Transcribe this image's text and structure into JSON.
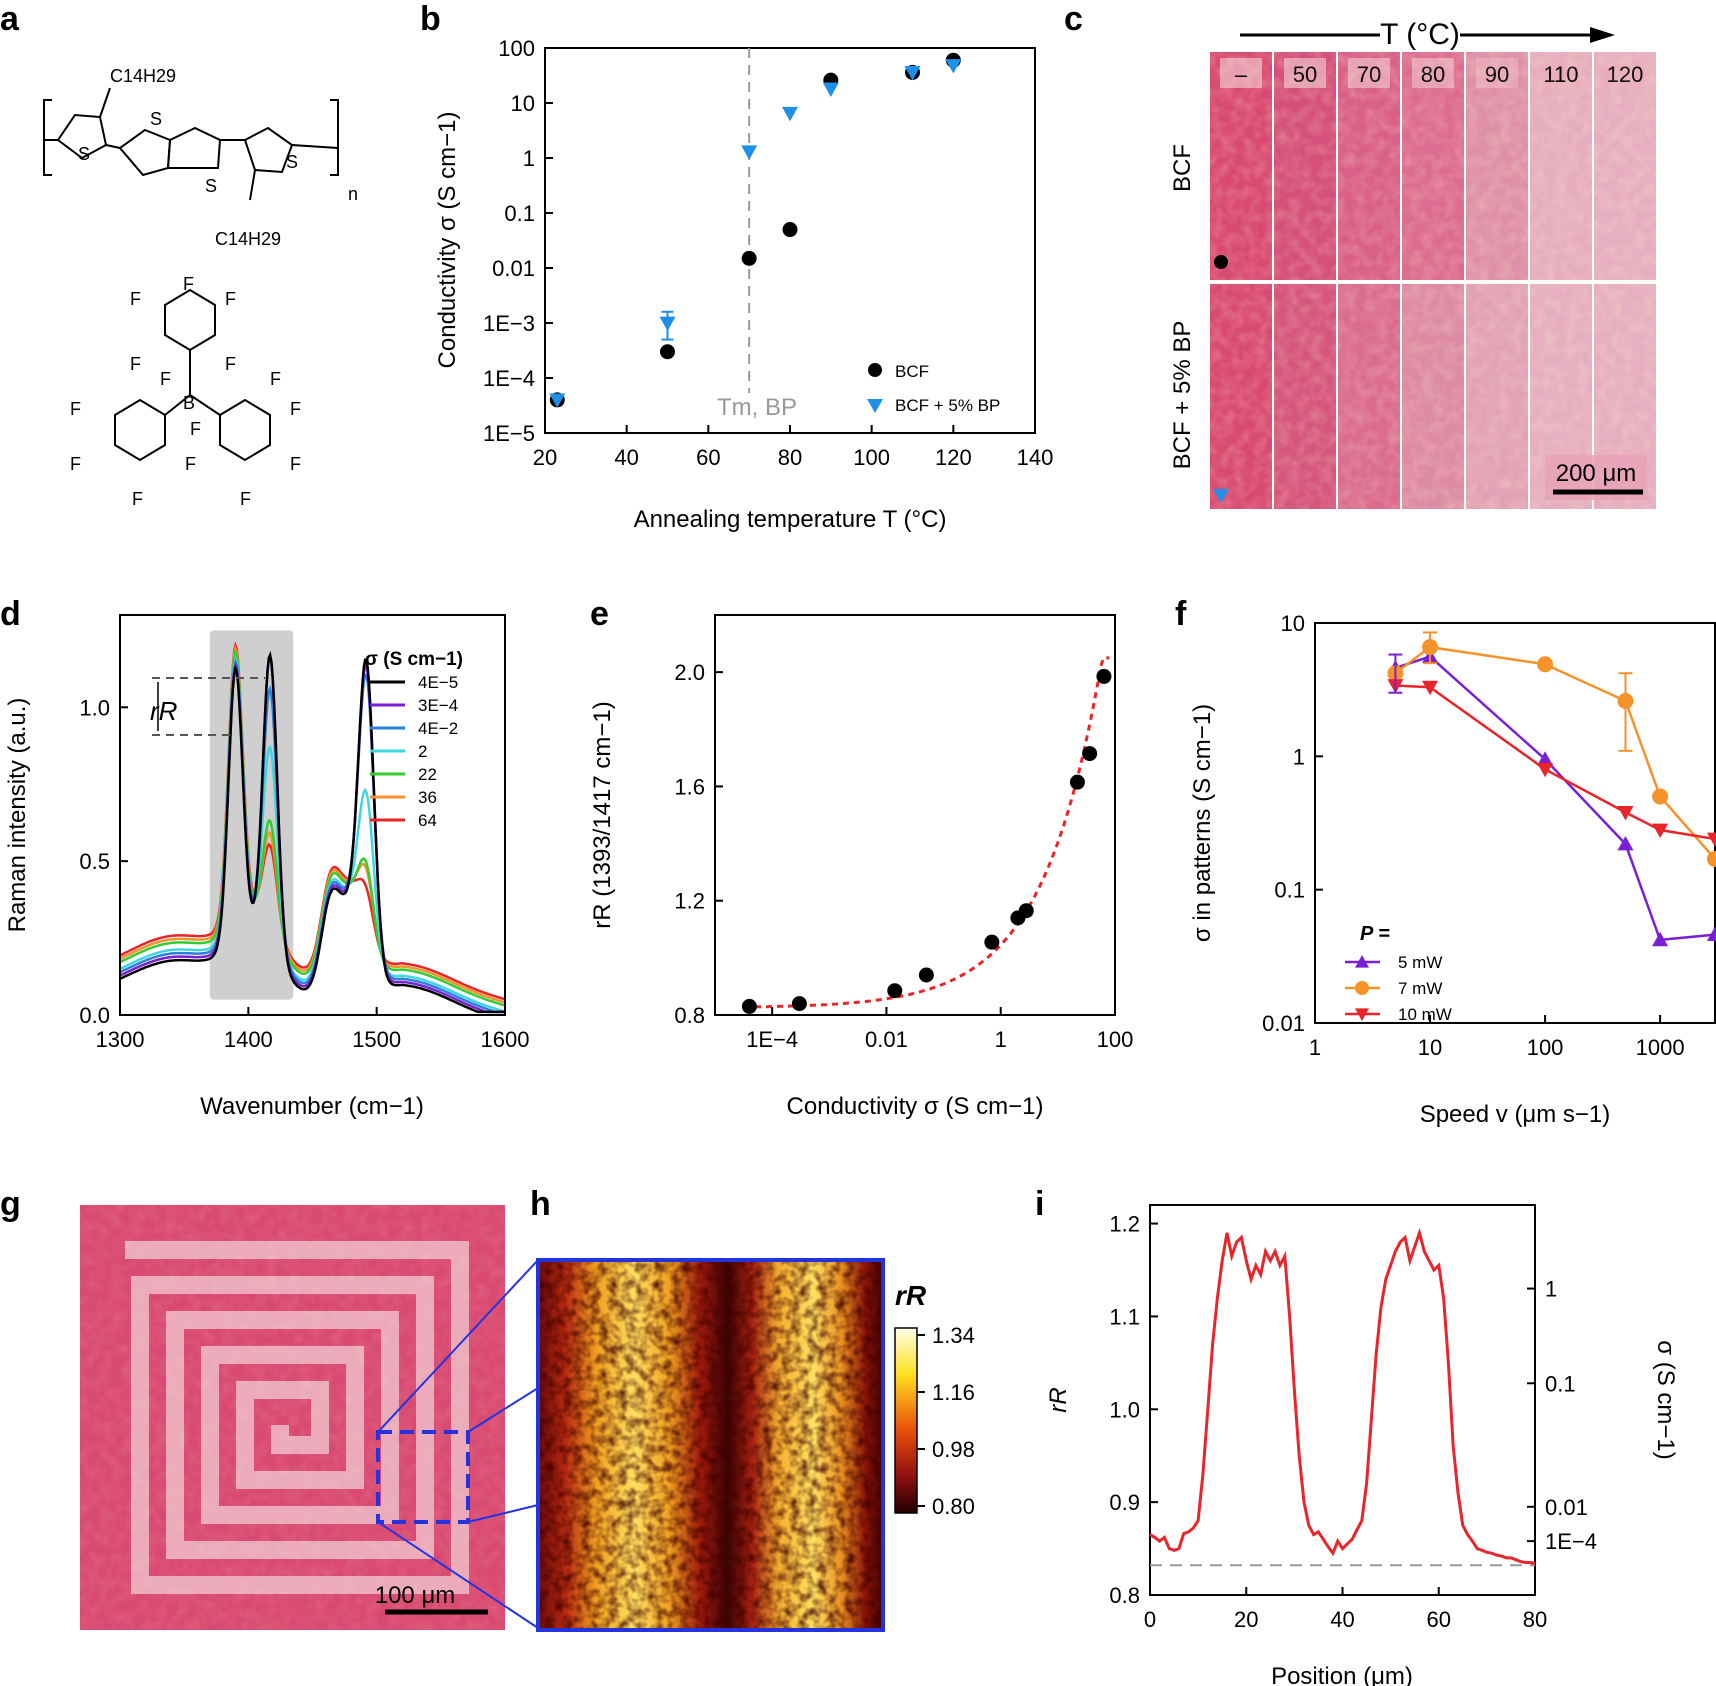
{
  "panels": {
    "a": "a",
    "b": "b",
    "c": "c",
    "d": "d",
    "e": "e",
    "f": "f",
    "g": "g",
    "h": "h",
    "i": "i"
  },
  "colors": {
    "bcf": "#000000",
    "bcf_bp": "#1f8fe8",
    "p5": "#7a1fd6",
    "p7": "#f5922a",
    "p10": "#e8252a",
    "film_pink": "#d94a72",
    "film_light": "#e9aabb"
  },
  "a": {
    "c14_top": "C14H29",
    "c14_bottom": "C14H29",
    "repeat_n": "n",
    "atoms": {
      "S": "S",
      "F": "F",
      "B": "B"
    }
  },
  "b": {
    "chart_data": {
      "type": "scatter",
      "xlabel": "Annealing temperature T (°C)",
      "ylabel": "Conductivity σ (S cm−1)",
      "xlim": [
        20,
        140
      ],
      "ylim": [
        1e-05,
        100
      ],
      "yscale": "log",
      "xticks": [
        20,
        40,
        60,
        80,
        100,
        120,
        140
      ],
      "yticklabels": [
        "1E−5",
        "1E−4",
        "1E−3",
        "0.01",
        "0.1",
        "1",
        "10",
        "100"
      ],
      "annotation": "Tm, BP",
      "annotation_x": 70,
      "series": [
        {
          "name": "BCF",
          "marker": "circle",
          "x": [
            23,
            50,
            70,
            80,
            90,
            110,
            120
          ],
          "y": [
            4e-05,
            0.0003,
            0.015,
            0.05,
            26,
            36,
            60
          ]
        },
        {
          "name": "BCF + 5% BP",
          "marker": "triangle-down",
          "x": [
            23,
            50,
            70,
            80,
            90,
            110,
            120
          ],
          "y": [
            4e-05,
            0.001,
            1.3,
            6.5,
            18,
            36,
            48
          ]
        }
      ]
    }
  },
  "c": {
    "axis_label": "T (°C)",
    "strips": [
      "–",
      "50",
      "70",
      "80",
      "90",
      "110",
      "120"
    ],
    "rows": [
      "BCF",
      "BCF + 5% BP"
    ],
    "scale_bar": "200 μm"
  },
  "d": {
    "chart_data": {
      "type": "line",
      "xlabel": "Wavenumber (cm−1)",
      "ylabel": "Raman intensity (a.u.)",
      "xlim": [
        1300,
        1600
      ],
      "ylim": [
        0,
        1.3
      ],
      "xticks": [
        1300,
        1400,
        1500,
        1600
      ],
      "yticks": [
        0.0,
        0.5,
        1.0
      ],
      "legend_title": "σ (S cm−1)",
      "annotation": "rR",
      "series": [
        {
          "name": "4E−5",
          "color": "#000000",
          "peak1417": 1.2,
          "peak1490": 1.29,
          "base": 0.05
        },
        {
          "name": "3E−4",
          "color": "#7a1fd6",
          "peak1417": 1.19,
          "peak1490": 1.26,
          "base": 0.06
        },
        {
          "name": "4E−2",
          "color": "#2b7fd8",
          "peak1417": 1.07,
          "peak1490": 1.22,
          "base": 0.07
        },
        {
          "name": "2",
          "color": "#3fd6e0",
          "peak1417": 0.87,
          "peak1490": 0.83,
          "base": 0.08
        },
        {
          "name": "22",
          "color": "#33cc33",
          "peak1417": 0.61,
          "peak1490": 0.58,
          "base": 0.1
        },
        {
          "name": "36",
          "color": "#f5922a",
          "peak1417": 0.56,
          "peak1490": 0.55,
          "base": 0.11
        },
        {
          "name": "64",
          "color": "#e8252a",
          "peak1417": 0.51,
          "peak1490": 0.48,
          "base": 0.12
        }
      ]
    }
  },
  "e": {
    "chart_data": {
      "type": "scatter",
      "xlabel": "Conductivity σ (S cm−1)",
      "ylabel": "rR (1393/1417 cm−1)",
      "xscale": "log",
      "xlim": [
        1e-05,
        100
      ],
      "ylim": [
        0.8,
        2.2
      ],
      "xticklabels": [
        "1E−4",
        "0.01",
        "1",
        "100"
      ],
      "yticks": [
        0.8,
        1.2,
        1.6,
        2.0
      ],
      "x": [
        4e-05,
        0.0003,
        0.014,
        0.05,
        0.7,
        2,
        2.8,
        22,
        36,
        64
      ],
      "y": [
        0.83,
        0.84,
        0.885,
        0.94,
        1.055,
        1.14,
        1.165,
        1.615,
        1.715,
        1.985
      ]
    }
  },
  "f": {
    "chart_data": {
      "type": "line",
      "xlabel": "Speed v (μm s−1)",
      "ylabel": "σ in patterns (S cm−1)",
      "xscale": "log",
      "yscale": "log",
      "xlim": [
        1,
        3000
      ],
      "ylim": [
        0.01,
        10
      ],
      "xticklabels": [
        "1",
        "10",
        "100",
        "1000"
      ],
      "yticklabels": [
        "0.01",
        "0.1",
        "1",
        "10"
      ],
      "legend_title": "P =",
      "series": [
        {
          "name": "5 mW",
          "marker": "triangle-up",
          "x": [
            5,
            10,
            100,
            500,
            1000,
            3000
          ],
          "y": [
            4.6,
            5.6,
            0.95,
            0.22,
            0.042,
            0.046
          ]
        },
        {
          "name": "7 mW",
          "marker": "circle",
          "x": [
            5,
            10,
            100,
            500,
            1000,
            3000
          ],
          "y": [
            4.2,
            6.6,
            4.9,
            2.6,
            0.5,
            0.17
          ]
        },
        {
          "name": "10 mW",
          "marker": "triangle-down",
          "x": [
            5,
            10,
            100,
            500,
            1000,
            3000
          ],
          "y": [
            3.4,
            3.3,
            0.8,
            0.38,
            0.28,
            0.24
          ]
        }
      ]
    }
  },
  "g": {
    "scale_bar": "100 μm"
  },
  "h": {
    "colorbar_title": "rR",
    "colorbar_ticks": [
      "1.34",
      "1.16",
      "0.98",
      "0.80"
    ]
  },
  "i": {
    "chart_data": {
      "type": "line",
      "xlabel": "Position (μm)",
      "ylabel": "rR",
      "ylabel_right": "σ (S cm−1)",
      "xlim": [
        0,
        80
      ],
      "ylim": [
        0.8,
        1.22
      ],
      "xticks": [
        0,
        20,
        40,
        60,
        80
      ],
      "yticks": [
        0.8,
        0.9,
        1.0,
        1.1,
        1.2
      ],
      "right_ticklabels": [
        "1",
        "0.1",
        "0.01",
        "1E−4"
      ],
      "baseline": 0.832,
      "x": [
        0,
        1,
        2,
        3,
        4,
        5,
        6,
        7,
        8,
        9,
        10,
        11,
        12,
        13,
        14,
        15,
        16,
        17,
        18,
        19,
        20,
        21,
        22,
        23,
        24,
        25,
        26,
        27,
        28,
        29,
        30,
        31,
        32,
        33,
        34,
        35,
        36,
        37,
        38,
        39,
        40,
        41,
        42,
        43,
        44,
        45,
        46,
        47,
        48,
        49,
        50,
        51,
        52,
        53,
        54,
        55,
        56,
        57,
        58,
        59,
        60,
        61,
        62,
        63,
        64,
        65,
        66,
        67,
        68,
        69,
        70,
        71,
        72,
        73,
        74,
        75,
        76,
        77,
        78,
        79,
        80
      ],
      "y": [
        0.865,
        0.862,
        0.858,
        0.862,
        0.85,
        0.848,
        0.85,
        0.866,
        0.868,
        0.872,
        0.88,
        0.93,
        1.0,
        1.07,
        1.12,
        1.16,
        1.19,
        1.165,
        1.18,
        1.185,
        1.16,
        1.14,
        1.155,
        1.145,
        1.17,
        1.16,
        1.17,
        1.155,
        1.165,
        1.1,
        1.02,
        0.95,
        0.9,
        0.875,
        0.865,
        0.868,
        0.86,
        0.852,
        0.845,
        0.858,
        0.85,
        0.855,
        0.86,
        0.87,
        0.88,
        0.92,
        0.99,
        1.06,
        1.11,
        1.14,
        1.155,
        1.17,
        1.18,
        1.185,
        1.16,
        1.175,
        1.19,
        1.17,
        1.16,
        1.15,
        1.155,
        1.12,
        1.05,
        0.96,
        0.91,
        0.875,
        0.865,
        0.858,
        0.85,
        0.848,
        0.846,
        0.845,
        0.843,
        0.842,
        0.84,
        0.84,
        0.838,
        0.836,
        0.835,
        0.835,
        0.834
      ]
    }
  }
}
